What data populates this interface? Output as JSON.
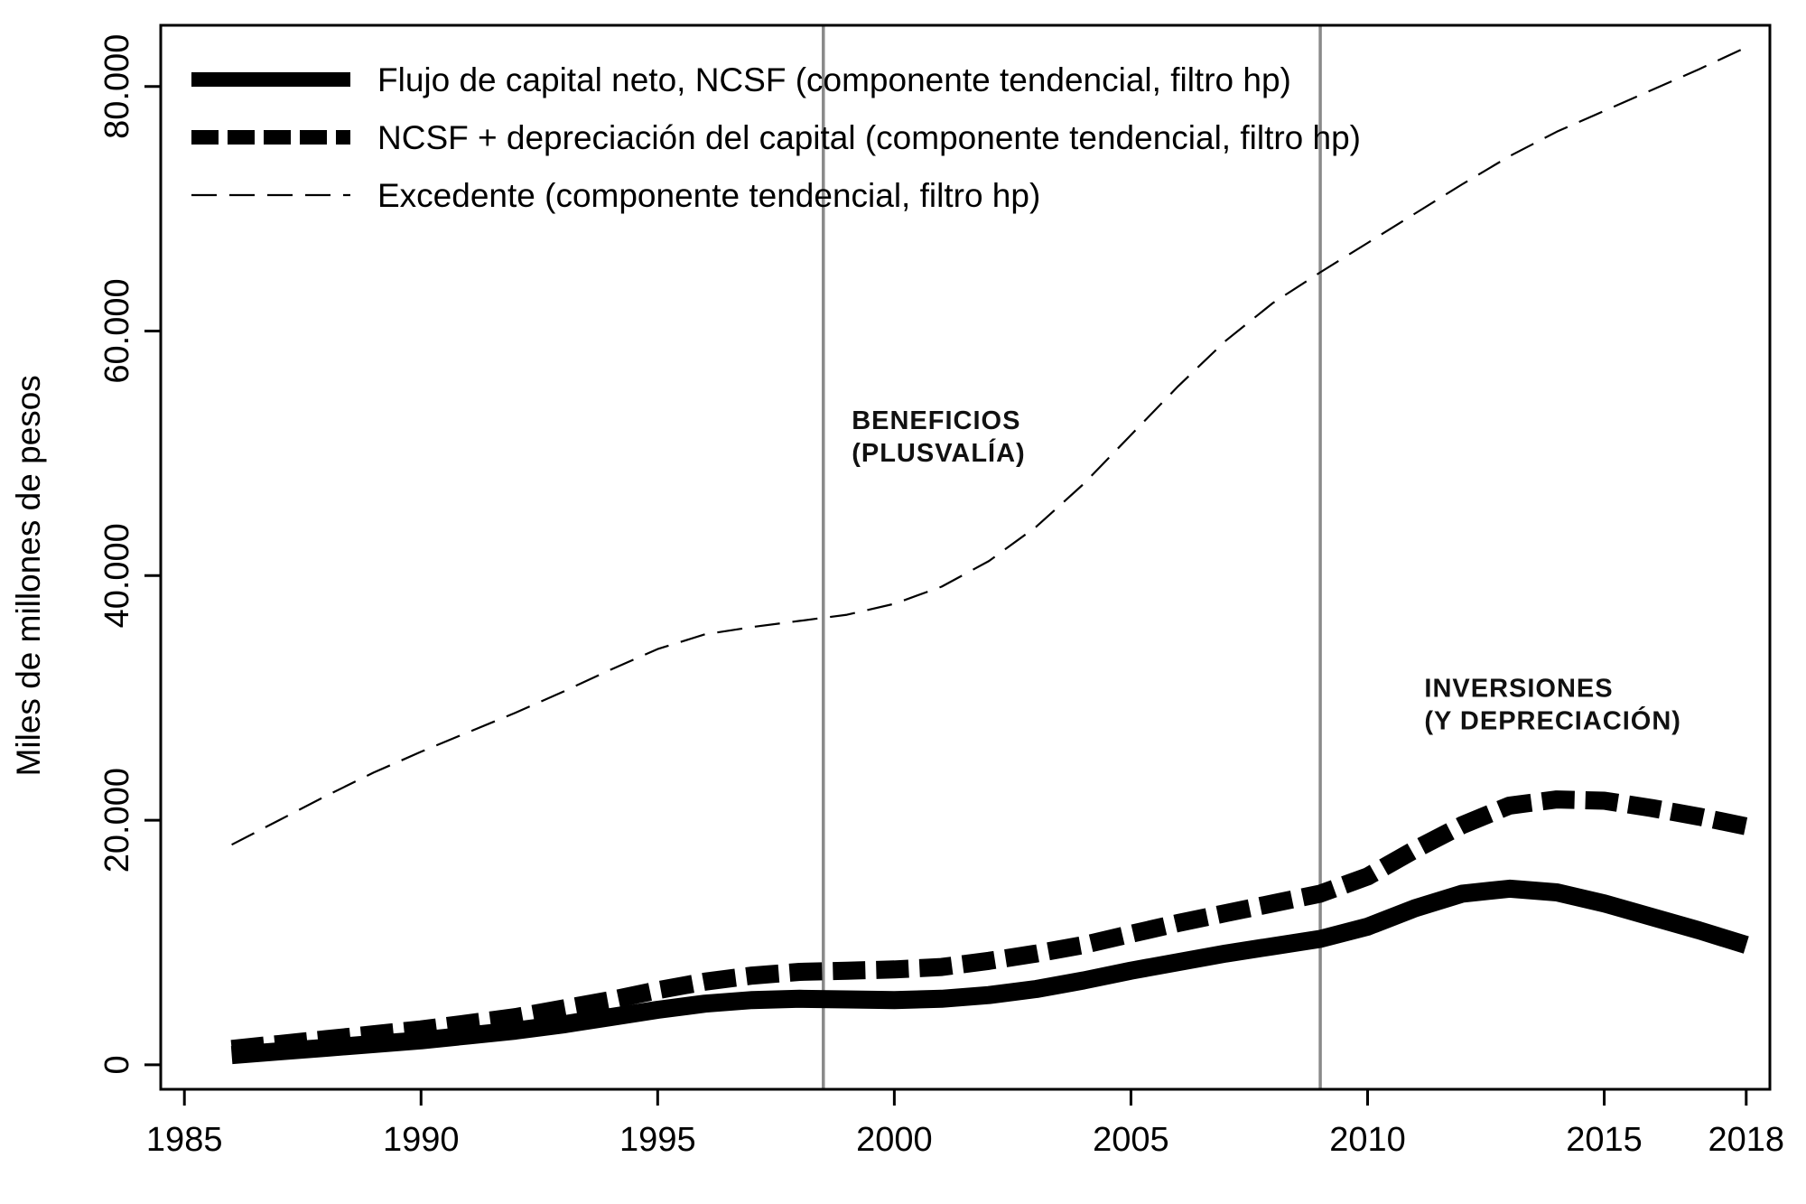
{
  "chart_data": {
    "type": "line",
    "ylabel": "Miles de millones de pesos",
    "xlabel": "",
    "xlim": [
      1984.5,
      2018.5
    ],
    "ylim": [
      -2000,
      85000
    ],
    "x_ticks": [
      {
        "value": 1985,
        "label": "1985"
      },
      {
        "value": 1990,
        "label": "1990"
      },
      {
        "value": 1995,
        "label": "1995"
      },
      {
        "value": 2000,
        "label": "2000"
      },
      {
        "value": 2005,
        "label": "2005"
      },
      {
        "value": 2010,
        "label": "2010"
      },
      {
        "value": 2015,
        "label": "2015"
      },
      {
        "value": 2018,
        "label": "2018"
      }
    ],
    "y_ticks": [
      {
        "value": 0,
        "label": "0"
      },
      {
        "value": 20000,
        "label": "20.000"
      },
      {
        "value": 40000,
        "label": "40.000"
      },
      {
        "value": 60000,
        "label": "60.000"
      },
      {
        "value": 80000,
        "label": "80.000"
      }
    ],
    "vlines": [
      1998.5,
      2009
    ],
    "legend_position": "top-left",
    "series": [
      {
        "name": "Flujo de capital neto, NCSF (componente tendencial, filtro hp)",
        "style": "solid-thick",
        "color": "#000000",
        "points": [
          [
            1986,
            800
          ],
          [
            1987,
            1100
          ],
          [
            1988,
            1400
          ],
          [
            1989,
            1700
          ],
          [
            1990,
            2000
          ],
          [
            1991,
            2400
          ],
          [
            1992,
            2800
          ],
          [
            1993,
            3300
          ],
          [
            1994,
            3900
          ],
          [
            1995,
            4500
          ],
          [
            1996,
            5000
          ],
          [
            1997,
            5300
          ],
          [
            1998,
            5400
          ],
          [
            1999,
            5350
          ],
          [
            2000,
            5300
          ],
          [
            2001,
            5400
          ],
          [
            2002,
            5700
          ],
          [
            2003,
            6200
          ],
          [
            2004,
            6900
          ],
          [
            2005,
            7700
          ],
          [
            2006,
            8400
          ],
          [
            2007,
            9100
          ],
          [
            2008,
            9700
          ],
          [
            2009,
            10300
          ],
          [
            2010,
            11300
          ],
          [
            2011,
            12800
          ],
          [
            2012,
            14000
          ],
          [
            2013,
            14400
          ],
          [
            2014,
            14100
          ],
          [
            2015,
            13200
          ],
          [
            2016,
            12100
          ],
          [
            2017,
            11000
          ],
          [
            2018,
            9800
          ]
        ]
      },
      {
        "name": "NCSF + depreciación del capital (componente tendencial, filtro hp)",
        "style": "dashed-thick",
        "color": "#000000",
        "points": [
          [
            1986,
            1300
          ],
          [
            1987,
            1700
          ],
          [
            1988,
            2100
          ],
          [
            1989,
            2500
          ],
          [
            1990,
            2900
          ],
          [
            1991,
            3400
          ],
          [
            1992,
            3900
          ],
          [
            1993,
            4600
          ],
          [
            1994,
            5300
          ],
          [
            1995,
            6100
          ],
          [
            1996,
            6800
          ],
          [
            1997,
            7300
          ],
          [
            1998,
            7600
          ],
          [
            1999,
            7700
          ],
          [
            2000,
            7800
          ],
          [
            2001,
            8000
          ],
          [
            2002,
            8500
          ],
          [
            2003,
            9100
          ],
          [
            2004,
            9800
          ],
          [
            2005,
            10700
          ],
          [
            2006,
            11600
          ],
          [
            2007,
            12400
          ],
          [
            2008,
            13200
          ],
          [
            2009,
            14000
          ],
          [
            2010,
            15400
          ],
          [
            2011,
            17600
          ],
          [
            2012,
            19600
          ],
          [
            2013,
            21200
          ],
          [
            2014,
            21700
          ],
          [
            2015,
            21600
          ],
          [
            2016,
            21000
          ],
          [
            2017,
            20300
          ],
          [
            2018,
            19500
          ]
        ]
      },
      {
        "name": "Excedente (componente tendencial, filtro hp)",
        "style": "dashed-thin",
        "color": "#000000",
        "points": [
          [
            1986,
            18000
          ],
          [
            1987,
            20000
          ],
          [
            1988,
            22000
          ],
          [
            1989,
            23900
          ],
          [
            1990,
            25600
          ],
          [
            1991,
            27200
          ],
          [
            1992,
            28800
          ],
          [
            1993,
            30500
          ],
          [
            1994,
            32300
          ],
          [
            1995,
            34000
          ],
          [
            1996,
            35200
          ],
          [
            1997,
            35800
          ],
          [
            1998,
            36300
          ],
          [
            1999,
            36800
          ],
          [
            2000,
            37700
          ],
          [
            2001,
            39100
          ],
          [
            2002,
            41200
          ],
          [
            2003,
            44000
          ],
          [
            2004,
            47500
          ],
          [
            2005,
            51500
          ],
          [
            2006,
            55500
          ],
          [
            2007,
            59200
          ],
          [
            2008,
            62300
          ],
          [
            2009,
            64800
          ],
          [
            2010,
            67200
          ],
          [
            2011,
            69600
          ],
          [
            2012,
            72000
          ],
          [
            2013,
            74300
          ],
          [
            2014,
            76300
          ],
          [
            2015,
            78000
          ],
          [
            2016,
            79700
          ],
          [
            2017,
            81400
          ],
          [
            2018,
            83200
          ]
        ]
      }
    ],
    "annotations": [
      {
        "lines": [
          "BENEFICIOS",
          "(PLUSVALÍA)"
        ],
        "x": 1999.1,
        "y": 52000
      },
      {
        "lines": [
          "INVERSIONES",
          " (Y DEPRECIACIÓN)"
        ],
        "x": 2011.2,
        "y": 30100
      }
    ]
  }
}
